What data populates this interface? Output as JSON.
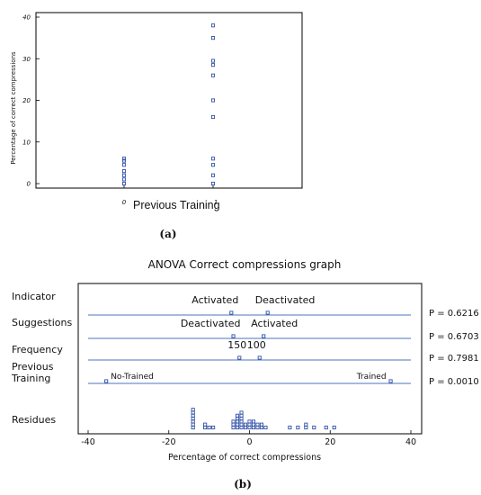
{
  "colors": {
    "marker": "#2f4fa8",
    "line": "#4d73c0",
    "axis": "#000000",
    "text": "#111111"
  },
  "chart_data": [
    {
      "type": "scatter",
      "caption": "(a)",
      "xlabel": "Previous Training",
      "ylabel": "Percentage of correct compressions",
      "xticks": [
        "0",
        "1"
      ],
      "yticks": [
        "0",
        "10",
        "20",
        "30",
        "40"
      ],
      "ylim": [
        0,
        40
      ],
      "grid": false,
      "series": [
        {
          "x": 0,
          "values": [
            0,
            1,
            2,
            3,
            4.5,
            5.5,
            6
          ]
        },
        {
          "x": 1,
          "values": [
            0,
            2,
            4.5,
            6,
            16,
            20,
            26,
            28.5,
            29.5,
            35,
            38
          ]
        }
      ]
    },
    {
      "type": "scatter",
      "title": "ANOVA Correct compressions graph",
      "caption": "(b)",
      "xlabel": "Percentage of correct compressions",
      "xticks": [
        "-40",
        "-20",
        "0",
        "20",
        "40"
      ],
      "xlim": [
        -40,
        40
      ],
      "factors": [
        {
          "name": "Indicator",
          "levels": [
            {
              "label": "Activated",
              "mean": -4.5
            },
            {
              "label": "Deactivated",
              "mean": 4.5
            }
          ],
          "p_value": "P = 0.6216"
        },
        {
          "name": "Suggestions",
          "levels": [
            {
              "label": "Deactivated",
              "mean": -4
            },
            {
              "label": "Activated",
              "mean": 3.5
            }
          ],
          "p_value": "P = 0.6703"
        },
        {
          "name": "Frequency",
          "levels": [
            {
              "label": "150",
              "mean": -2.5
            },
            {
              "label": "100",
              "mean": 2.5
            }
          ],
          "p_value": "P = 0.7981"
        },
        {
          "name": "Previous\nTraining",
          "levels": [
            {
              "label": "No-Trained",
              "mean": -35.5
            },
            {
              "label": "Trained",
              "mean": 35
            }
          ],
          "p_value": "P = 0.0010"
        }
      ],
      "residues": {
        "name": "Residues",
        "points": [
          {
            "x": -14,
            "n": 7
          },
          {
            "x": -11,
            "n": 2
          },
          {
            "x": -10,
            "n": 1
          },
          {
            "x": -9,
            "n": 1
          },
          {
            "x": -4,
            "n": 3
          },
          {
            "x": -3,
            "n": 5
          },
          {
            "x": -2,
            "n": 6
          },
          {
            "x": -1,
            "n": 2
          },
          {
            "x": 0,
            "n": 3
          },
          {
            "x": 1,
            "n": 3
          },
          {
            "x": 2,
            "n": 2
          },
          {
            "x": 3,
            "n": 2
          },
          {
            "x": 4,
            "n": 1
          },
          {
            "x": 10,
            "n": 1
          },
          {
            "x": 12,
            "n": 1
          },
          {
            "x": 14,
            "n": 2
          },
          {
            "x": 16,
            "n": 1
          },
          {
            "x": 19,
            "n": 1
          },
          {
            "x": 21,
            "n": 1
          }
        ]
      }
    }
  ]
}
